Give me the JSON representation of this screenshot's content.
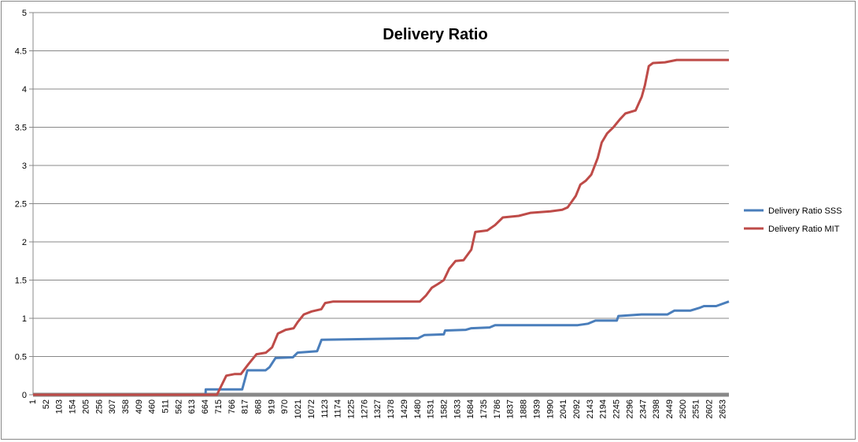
{
  "chart_data": {
    "type": "line",
    "title": "Delivery Ratio",
    "xlabel": "",
    "ylabel": "",
    "xlim": [
      1,
      2676
    ],
    "ylim": [
      0,
      5
    ],
    "yticks": [
      0,
      0.5,
      1,
      1.5,
      2,
      2.5,
      3,
      3.5,
      4,
      4.5,
      5
    ],
    "ytick_labels": [
      "0",
      "0.5",
      "1",
      "1.5",
      "2",
      "2.5",
      "3",
      "3.5",
      "4",
      "4.5",
      "5"
    ],
    "xtick_labels": [
      "1",
      "52",
      "103",
      "154",
      "205",
      "256",
      "307",
      "358",
      "409",
      "460",
      "511",
      "562",
      "613",
      "664",
      "715",
      "766",
      "817",
      "868",
      "919",
      "970",
      "1021",
      "1072",
      "1123",
      "1174",
      "1225",
      "1276",
      "1327",
      "1378",
      "1429",
      "1480",
      "1531",
      "1582",
      "1633",
      "1684",
      "1735",
      "1786",
      "1837",
      "1888",
      "1939",
      "1990",
      "2041",
      "2092",
      "2143",
      "2194",
      "2245",
      "2296",
      "2347",
      "2398",
      "2449",
      "2500",
      "2551",
      "2602",
      "2653"
    ],
    "grid": true,
    "legend": "right",
    "series": [
      {
        "name": "Delivery Ratio SSS",
        "color": "#4a7ebb",
        "points": [
          [
            1,
            0
          ],
          [
            664,
            0
          ],
          [
            665,
            0.07
          ],
          [
            805,
            0.07
          ],
          [
            825,
            0.32
          ],
          [
            895,
            0.32
          ],
          [
            910,
            0.36
          ],
          [
            933,
            0.48
          ],
          [
            1000,
            0.49
          ],
          [
            1018,
            0.55
          ],
          [
            1093,
            0.57
          ],
          [
            1110,
            0.72
          ],
          [
            1482,
            0.74
          ],
          [
            1505,
            0.78
          ],
          [
            1580,
            0.79
          ],
          [
            1585,
            0.84
          ],
          [
            1665,
            0.85
          ],
          [
            1686,
            0.87
          ],
          [
            1756,
            0.88
          ],
          [
            1777,
            0.91
          ],
          [
            2095,
            0.91
          ],
          [
            2135,
            0.93
          ],
          [
            2163,
            0.97
          ],
          [
            2245,
            0.97
          ],
          [
            2251,
            1.03
          ],
          [
            2340,
            1.05
          ],
          [
            2440,
            1.05
          ],
          [
            2466,
            1.1
          ],
          [
            2527,
            1.1
          ],
          [
            2566,
            1.14
          ],
          [
            2580,
            1.16
          ],
          [
            2627,
            1.16
          ],
          [
            2676,
            1.22
          ]
        ]
      },
      {
        "name": "Delivery Ratio MIT",
        "color": "#be4b48",
        "points": [
          [
            1,
            0
          ],
          [
            708,
            0
          ],
          [
            744,
            0.25
          ],
          [
            775,
            0.27
          ],
          [
            800,
            0.27
          ],
          [
            829,
            0.4
          ],
          [
            860,
            0.53
          ],
          [
            896,
            0.55
          ],
          [
            920,
            0.62
          ],
          [
            942,
            0.8
          ],
          [
            972,
            0.85
          ],
          [
            1003,
            0.87
          ],
          [
            1018,
            0.95
          ],
          [
            1042,
            1.05
          ],
          [
            1072,
            1.09
          ],
          [
            1109,
            1.12
          ],
          [
            1124,
            1.2
          ],
          [
            1155,
            1.22
          ],
          [
            1488,
            1.22
          ],
          [
            1512,
            1.3
          ],
          [
            1534,
            1.4
          ],
          [
            1558,
            1.45
          ],
          [
            1580,
            1.5
          ],
          [
            1601,
            1.65
          ],
          [
            1625,
            1.75
          ],
          [
            1656,
            1.76
          ],
          [
            1686,
            1.9
          ],
          [
            1701,
            2.13
          ],
          [
            1747,
            2.15
          ],
          [
            1777,
            2.22
          ],
          [
            1807,
            2.32
          ],
          [
            1868,
            2.34
          ],
          [
            1914,
            2.38
          ],
          [
            1990,
            2.4
          ],
          [
            2035,
            2.42
          ],
          [
            2056,
            2.45
          ],
          [
            2087,
            2.6
          ],
          [
            2105,
            2.75
          ],
          [
            2126,
            2.8
          ],
          [
            2147,
            2.88
          ],
          [
            2172,
            3.1
          ],
          [
            2187,
            3.3
          ],
          [
            2208,
            3.42
          ],
          [
            2232,
            3.5
          ],
          [
            2256,
            3.6
          ],
          [
            2278,
            3.68
          ],
          [
            2317,
            3.72
          ],
          [
            2341,
            3.9
          ],
          [
            2353,
            4.05
          ],
          [
            2368,
            4.3
          ],
          [
            2384,
            4.34
          ],
          [
            2430,
            4.35
          ],
          [
            2475,
            4.38
          ],
          [
            2676,
            4.38
          ]
        ]
      }
    ]
  }
}
